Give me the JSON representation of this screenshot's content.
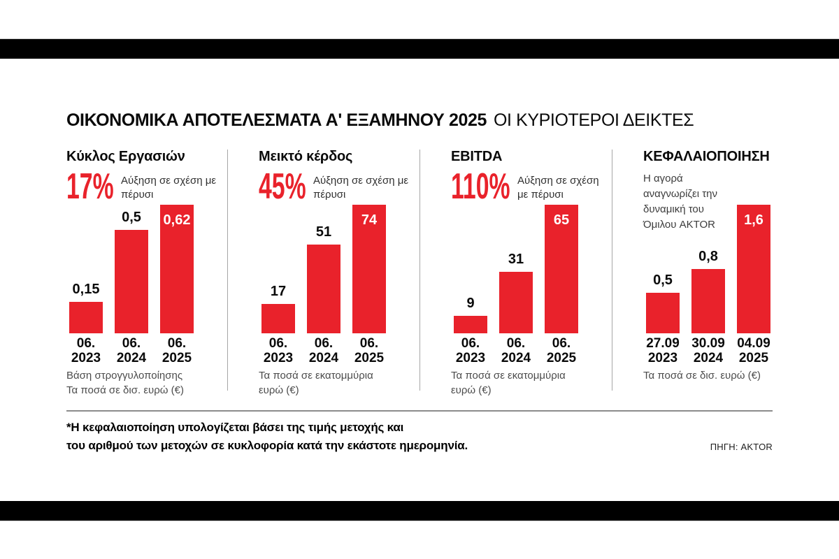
{
  "title": {
    "main": "ΟΙΚΟΝΟΜΙΚΑ ΑΠΟΤΕΛΕΣΜΑΤΑ Α' ΕΞΑΜΗΝΟΥ 2025",
    "accent": "ΟΙ ΚΥΡΙΟΤΕΡΟΙ ΔΕΙΚΤΕΣ"
  },
  "colors": {
    "accent_red": "#e9222b",
    "band_black": "#000000",
    "note_gray": "#4c4c4c"
  },
  "chart_data": [
    {
      "type": "bar",
      "title": "Κύκλος Εργασιών",
      "stat": "17%",
      "stat_caption": "Αύξηση σε σχέση με πέρυσι",
      "categories": [
        [
          "06.",
          "2023"
        ],
        [
          "06.",
          "2024"
        ],
        [
          "06.",
          "2025"
        ]
      ],
      "values": [
        0.15,
        0.5,
        0.62
      ],
      "value_labels": [
        "0,15",
        "0,5",
        "0,62"
      ],
      "note_lines": [
        "Βάση στρογγυλοποίησης",
        "Τα ποσά σε δισ. ευρώ (€)"
      ]
    },
    {
      "type": "bar",
      "title": "Μεικτό κέρδος",
      "stat": "45%",
      "stat_caption": "Αύξηση σε σχέση με πέρυσι",
      "categories": [
        [
          "06.",
          "2023"
        ],
        [
          "06.",
          "2024"
        ],
        [
          "06.",
          "2025"
        ]
      ],
      "values": [
        17,
        51,
        74
      ],
      "value_labels": [
        "17",
        "51",
        "74"
      ],
      "note_lines": [
        "Τα ποσά σε εκατομμύρια",
        "ευρώ (€)"
      ]
    },
    {
      "type": "bar",
      "title": "EBITDA",
      "stat": "110%",
      "stat_caption": "Αύξηση σε σχέση με πέρυσι",
      "categories": [
        [
          "06.",
          "2023"
        ],
        [
          "06.",
          "2024"
        ],
        [
          "06.",
          "2025"
        ]
      ],
      "values": [
        9,
        31,
        65
      ],
      "value_labels": [
        "9",
        "31",
        "65"
      ],
      "note_lines": [
        "Τα ποσά σε εκατομμύρια",
        "ευρώ (€)"
      ]
    },
    {
      "type": "bar",
      "title": "ΚΕΦΑΛΑΙΟΠΟΙΗΣΗ",
      "stat": "",
      "stat_caption": "",
      "desc": "Η αγορά αναγνωρίζει την δυναμική του Όμιλου AKTOR",
      "categories": [
        [
          "27.09",
          "2023"
        ],
        [
          "30.09",
          "2024"
        ],
        [
          "04.09",
          "2025"
        ]
      ],
      "values": [
        0.5,
        0.8,
        1.6
      ],
      "value_labels": [
        "0,5",
        "0,8",
        "1,6"
      ],
      "note_lines": [
        "Τα ποσά σε δισ. ευρώ (€)"
      ]
    }
  ],
  "footer": {
    "note_line1": "*Η κεφαλαιοποίηση υπολογίζεται βάσει της τιμής μετοχής και",
    "note_line2": "του αριθμού των μετοχών σε κυκλοφορία κατά την εκάστοτε ημερομηνία.",
    "source": "ΠΗΓΗ: AKTOR"
  }
}
